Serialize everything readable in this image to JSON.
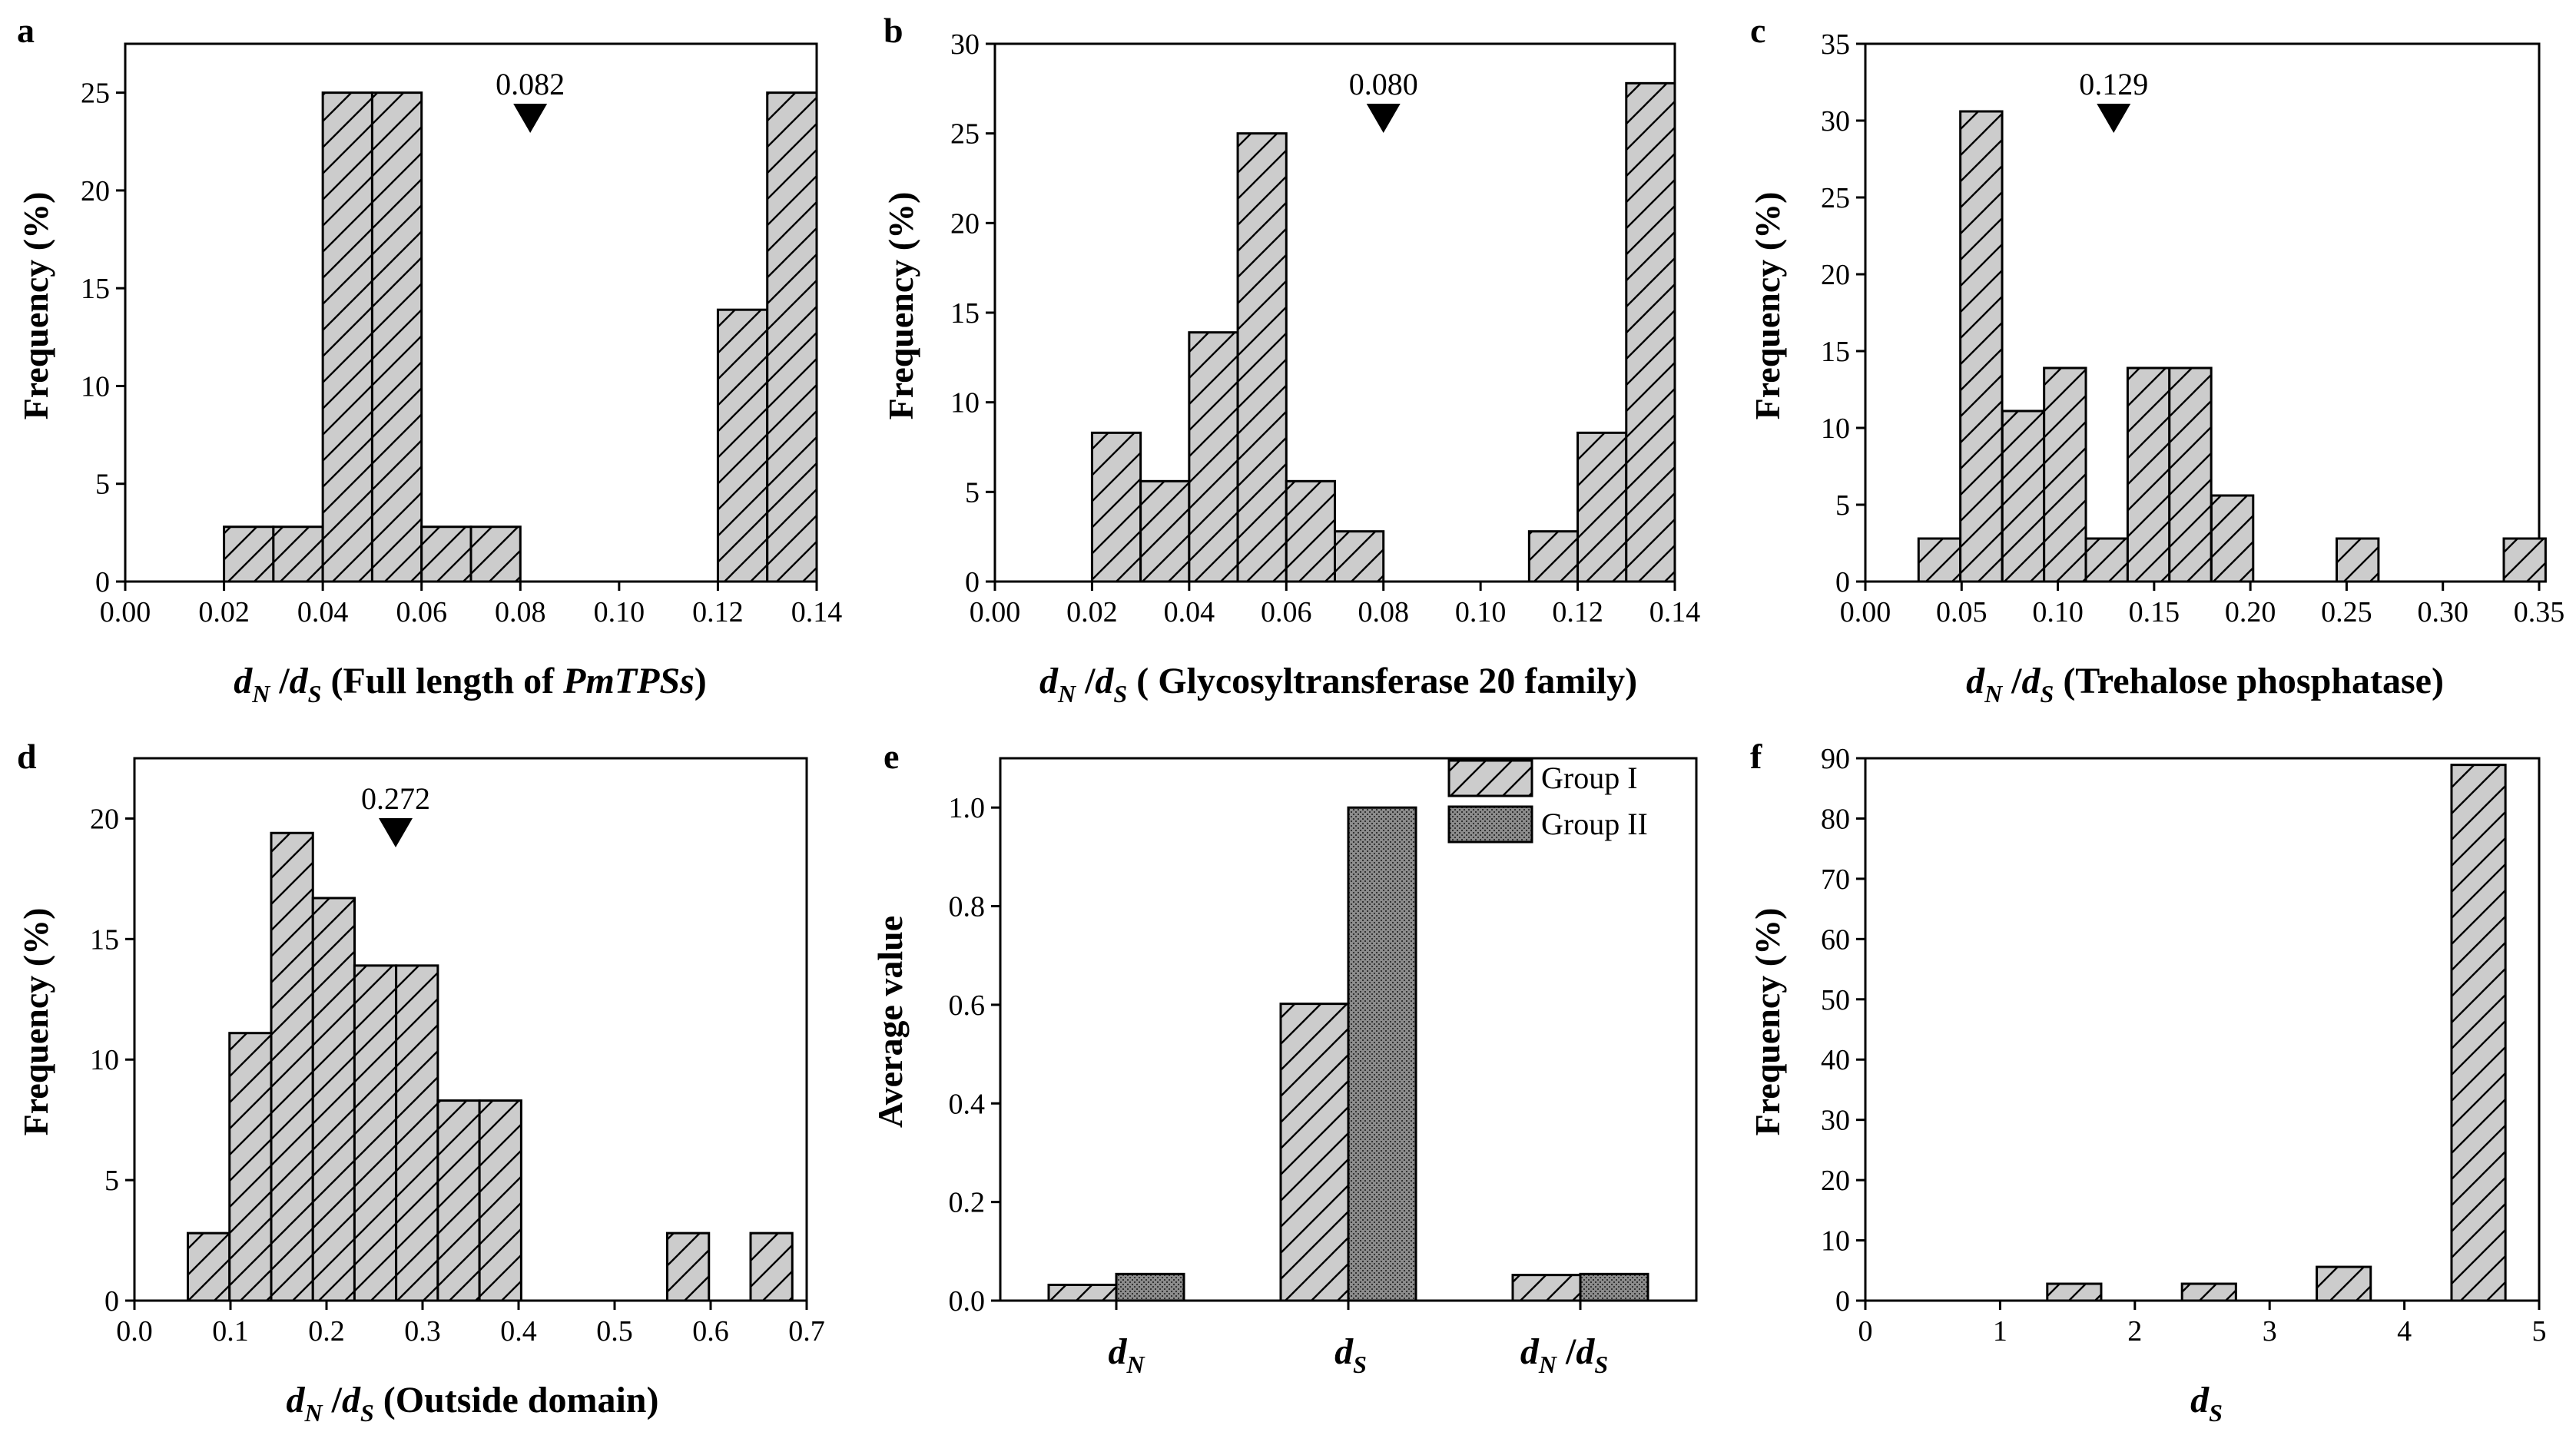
{
  "chart_data": [
    {
      "panel": "a",
      "type": "bar",
      "xlabel_sym": "d",
      "xlabel_sub1": "N",
      "xlabel_mid": " /",
      "xlabel_sub2": "S",
      "xlabel_pre": " (Full length of ",
      "xlabel_italic": "PmTPSs",
      "xlabel_post": ")",
      "ylabel": "Frequency (%)",
      "xlim": [
        0,
        0.14
      ],
      "ylim": [
        0,
        27.5
      ],
      "xticks": [
        "0.00",
        "0.02",
        "0.04",
        "0.06",
        "0.08",
        "0.10",
        "0.12",
        "0.14"
      ],
      "xtick_values": [
        0,
        0.02,
        0.04,
        0.06,
        0.08,
        0.1,
        0.12,
        0.14
      ],
      "yticks": [
        "0",
        "5",
        "10",
        "15",
        "20",
        "25"
      ],
      "ytick_values": [
        0,
        5,
        10,
        15,
        20,
        25
      ],
      "bin_width": 0.01,
      "bins": [
        0.025,
        0.035,
        0.045,
        0.055,
        0.065,
        0.075,
        0.125,
        0.135
      ],
      "values": [
        2.8,
        2.8,
        25,
        25,
        2.8,
        2.8,
        13.9,
        25
      ],
      "mean_marker": 0.082,
      "mean_label": "0.082"
    },
    {
      "panel": "b",
      "type": "bar",
      "xlabel_sym": "d",
      "xlabel_sub1": "N",
      "xlabel_mid": " /",
      "xlabel_sub2": "S",
      "xlabel_pre": " ( Glycosyltransferase 20  family)",
      "xlabel_italic": "",
      "xlabel_post": "",
      "ylabel": "Frequency (%)",
      "xlim": [
        0,
        0.14
      ],
      "ylim": [
        0,
        30
      ],
      "xticks": [
        "0.00",
        "0.02",
        "0.04",
        "0.06",
        "0.08",
        "0.10",
        "0.12",
        "0.14"
      ],
      "xtick_values": [
        0,
        0.02,
        0.04,
        0.06,
        0.08,
        0.1,
        0.12,
        0.14
      ],
      "yticks": [
        "0",
        "5",
        "10",
        "15",
        "20",
        "25",
        "30"
      ],
      "ytick_values": [
        0,
        5,
        10,
        15,
        20,
        25,
        30
      ],
      "bin_width": 0.01,
      "bins": [
        0.025,
        0.035,
        0.045,
        0.055,
        0.065,
        0.075,
        0.115,
        0.125,
        0.135
      ],
      "values": [
        8.3,
        5.6,
        13.9,
        25,
        5.6,
        2.8,
        2.8,
        8.3,
        27.8
      ],
      "mean_marker": 0.08,
      "mean_label": "0.080"
    },
    {
      "panel": "c",
      "type": "bar",
      "xlabel_sym": "d",
      "xlabel_sub1": "N",
      "xlabel_mid": " /",
      "xlabel_sub2": "S",
      "xlabel_pre": " (Trehalose phosphatase)",
      "xlabel_italic": "",
      "xlabel_post": "",
      "ylabel": "Frequency (%)",
      "xlim": [
        0,
        0.35
      ],
      "ylim": [
        0,
        35
      ],
      "xticks": [
        "0.00",
        "0.05",
        "0.10",
        "0.15",
        "0.20",
        "0.25",
        "0.30",
        "0.35"
      ],
      "xtick_values": [
        0,
        0.05,
        0.1,
        0.15,
        0.2,
        0.25,
        0.3,
        0.35
      ],
      "yticks": [
        "0",
        "5",
        "10",
        "15",
        "20",
        "25",
        "30",
        "35"
      ],
      "ytick_values": [
        0,
        5,
        10,
        15,
        20,
        25,
        30,
        35
      ],
      "bin_width": 0.0217,
      "bins": [
        0.0385,
        0.0602,
        0.082,
        0.1037,
        0.1254,
        0.1471,
        0.1688,
        0.1906,
        0.2557,
        0.3425
      ],
      "values": [
        2.8,
        30.6,
        11.1,
        13.9,
        2.8,
        13.9,
        13.9,
        5.6,
        2.8,
        2.8
      ],
      "mean_marker": 0.129,
      "mean_label": "0.129"
    },
    {
      "panel": "d",
      "type": "bar",
      "xlabel_sym": "d",
      "xlabel_sub1": "N",
      "xlabel_mid": " /",
      "xlabel_sub2": "S",
      "xlabel_pre": " (Outside domain)",
      "xlabel_italic": "",
      "xlabel_post": "",
      "ylabel": "Frequency (%)",
      "xlim": [
        0,
        0.7
      ],
      "ylim": [
        0,
        22.5
      ],
      "xticks": [
        "0.0",
        "0.1",
        "0.2",
        "0.3",
        "0.4",
        "0.5",
        "0.6",
        "0.7"
      ],
      "xtick_values": [
        0,
        0.1,
        0.2,
        0.3,
        0.4,
        0.5,
        0.6,
        0.7
      ],
      "yticks": [
        "0",
        "5",
        "10",
        "15",
        "20"
      ],
      "ytick_values": [
        0,
        5,
        10,
        15,
        20
      ],
      "bin_width": 0.0434,
      "bins": [
        0.0773,
        0.1207,
        0.1641,
        0.2075,
        0.2508,
        0.2942,
        0.3376,
        0.381,
        0.5765,
        0.6633
      ],
      "values": [
        2.8,
        11.1,
        19.4,
        16.7,
        13.9,
        13.9,
        8.3,
        8.3,
        2.8,
        2.8
      ],
      "mean_marker": 0.272,
      "mean_label": "0.272"
    },
    {
      "panel": "e",
      "type": "bar",
      "ylabel": "Average value",
      "categories": [
        "dN",
        "dS",
        "dN/dS"
      ],
      "ylim": [
        0,
        1.1
      ],
      "yticks": [
        "0.0",
        "0.2",
        "0.4",
        "0.6",
        "0.8",
        "1.0"
      ],
      "ytick_values": [
        0,
        0.2,
        0.4,
        0.6,
        0.8,
        1.0
      ],
      "series": [
        {
          "name": "Group I",
          "values": [
            0.032,
            0.602,
            0.052
          ]
        },
        {
          "name": "Group II",
          "values": [
            0.054,
            1.0,
            0.054
          ]
        }
      ],
      "legend_position": "top-right"
    },
    {
      "panel": "f",
      "type": "bar",
      "xlabel_sym": "d",
      "xlabel_sub1": "S",
      "ylabel": "Frequency (%)",
      "xlim": [
        0,
        5
      ],
      "ylim": [
        0,
        90
      ],
      "xticks": [
        "0",
        "1",
        "2",
        "3",
        "4",
        "5"
      ],
      "xtick_values": [
        0,
        1,
        2,
        3,
        4,
        5
      ],
      "yticks": [
        "0",
        "10",
        "20",
        "30",
        "40",
        "50",
        "60",
        "70",
        "80",
        "90"
      ],
      "ytick_values": [
        0,
        10,
        20,
        30,
        40,
        50,
        60,
        70,
        80,
        90
      ],
      "bin_width": 0.4,
      "bins": [
        1.55,
        2.55,
        3.55,
        4.55
      ],
      "values": [
        2.8,
        2.8,
        5.6,
        88.9
      ]
    }
  ],
  "colors": {
    "bar_fill": "#cccccc",
    "group2_fill": "#8c8c8c",
    "ink": "#000000"
  }
}
